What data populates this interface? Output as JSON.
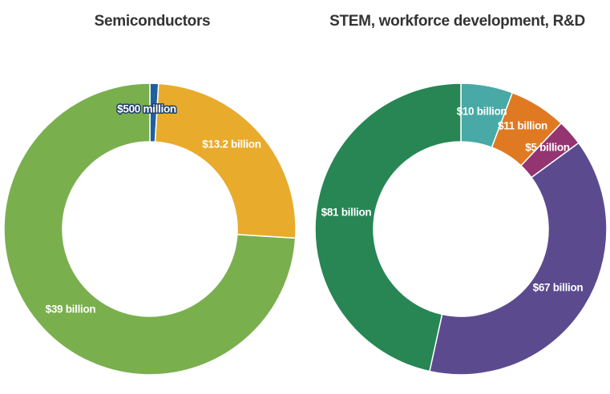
{
  "chart_data": [
    {
      "type": "pie",
      "title": "Semiconductors",
      "slices": [
        {
          "label": "$500 million",
          "value": 0.5,
          "color": "#1f5fa0"
        },
        {
          "label": "$13.2 billion",
          "value": 13.2,
          "color": "#e8ab2c"
        },
        {
          "label": "$39 billion",
          "value": 39,
          "color": "#7aaf4e"
        }
      ]
    },
    {
      "type": "pie",
      "title": "STEM, workforce development, R&D",
      "slices": [
        {
          "label": "$10 billion",
          "value": 10,
          "color": "#48a9a6"
        },
        {
          "label": "$11 billion",
          "value": 11,
          "color": "#df7a22"
        },
        {
          "label": "$5 billion",
          "value": 5,
          "color": "#943471"
        },
        {
          "label": "$67 billion",
          "value": 67,
          "color": "#5c4a8f"
        },
        {
          "label": "$81 billion",
          "value": 81,
          "color": "#278654"
        }
      ]
    }
  ]
}
